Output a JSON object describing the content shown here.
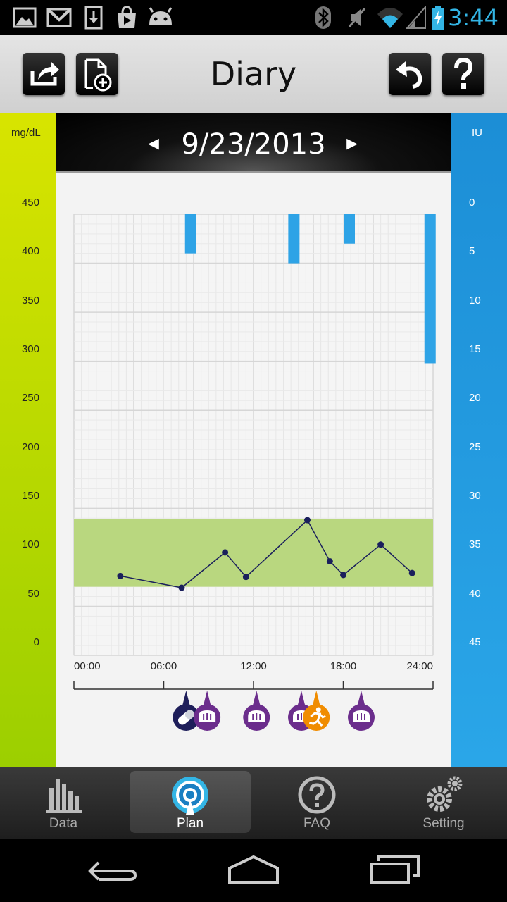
{
  "status_bar": {
    "time": "3:44",
    "left_icons": [
      "gallery-icon",
      "gmail-icon",
      "download-icon",
      "play-store-icon",
      "android-icon"
    ],
    "right_icons": [
      "bluetooth-icon",
      "mute-icon",
      "wifi-icon",
      "signal-icon",
      "battery-charging-icon"
    ]
  },
  "toolbar": {
    "title": "Diary",
    "buttons": [
      "share-icon",
      "add-document-icon",
      "undo-icon",
      "help-icon"
    ]
  },
  "date_nav": {
    "date": "9/23/2013",
    "prev_label": "◄",
    "next_label": "►"
  },
  "chart_data": {
    "type": "line",
    "left_axis": {
      "unit": "mg/dL",
      "ticks": [
        "450",
        "400",
        "350",
        "300",
        "250",
        "200",
        "150",
        "100",
        "50",
        "0"
      ],
      "range": [
        0,
        450
      ]
    },
    "right_axis": {
      "unit": "IU",
      "ticks": [
        "0",
        "5",
        "10",
        "15",
        "20",
        "25",
        "30",
        "35",
        "40",
        "45"
      ],
      "range": [
        0,
        45
      ],
      "inverted": true
    },
    "x_axis": {
      "ticks": [
        "00:00",
        "06:00",
        "12:00",
        "18:00",
        "24:00"
      ],
      "range_hours": [
        0,
        24
      ]
    },
    "target_range_mgdl": [
      70,
      139
    ],
    "glucose_series": {
      "points": [
        {
          "x": 3.1,
          "y": 81
        },
        {
          "x": 7.2,
          "y": 69
        },
        {
          "x": 10.1,
          "y": 105
        },
        {
          "x": 11.5,
          "y": 80
        },
        {
          "x": 15.6,
          "y": 138
        },
        {
          "x": 17.1,
          "y": 96
        },
        {
          "x": 18.0,
          "y": 82
        },
        {
          "x": 20.5,
          "y": 113
        },
        {
          "x": 22.6,
          "y": 84
        }
      ]
    },
    "insulin_bars": [
      {
        "x": 7.8,
        "iu": 4
      },
      {
        "x": 14.7,
        "iu": 5
      },
      {
        "x": 18.4,
        "iu": 3
      },
      {
        "x": 23.8,
        "iu": 15.2
      }
    ],
    "event_markers": [
      {
        "x": 7.5,
        "type": "pill-icon",
        "color": "#1e1e5a"
      },
      {
        "x": 8.9,
        "type": "meal-icon",
        "color": "#6b2d8c"
      },
      {
        "x": 12.2,
        "type": "meal-icon",
        "color": "#6b2d8c"
      },
      {
        "x": 15.2,
        "type": "meal-icon",
        "color": "#6b2d8c"
      },
      {
        "x": 16.2,
        "type": "exercise-icon",
        "color": "#f08c00"
      },
      {
        "x": 19.2,
        "type": "meal-icon",
        "color": "#6b2d8c"
      }
    ],
    "colors": {
      "left_bar": "#c8df00",
      "right_bar": "#1e93db",
      "target_band": "#b9d77f",
      "line": "#1a1f5c",
      "insulin": "#2ea3e6"
    }
  },
  "bottom_nav": {
    "items": [
      {
        "label": "Data",
        "icon": "bar-chart-icon",
        "active": false
      },
      {
        "label": "Plan",
        "icon": "target-icon",
        "active": true
      },
      {
        "label": "FAQ",
        "icon": "question-icon",
        "active": false
      },
      {
        "label": "Setting",
        "icon": "gears-icon",
        "active": false
      }
    ]
  },
  "system_nav": {
    "buttons": [
      "back-icon",
      "home-icon",
      "recent-apps-icon"
    ]
  }
}
